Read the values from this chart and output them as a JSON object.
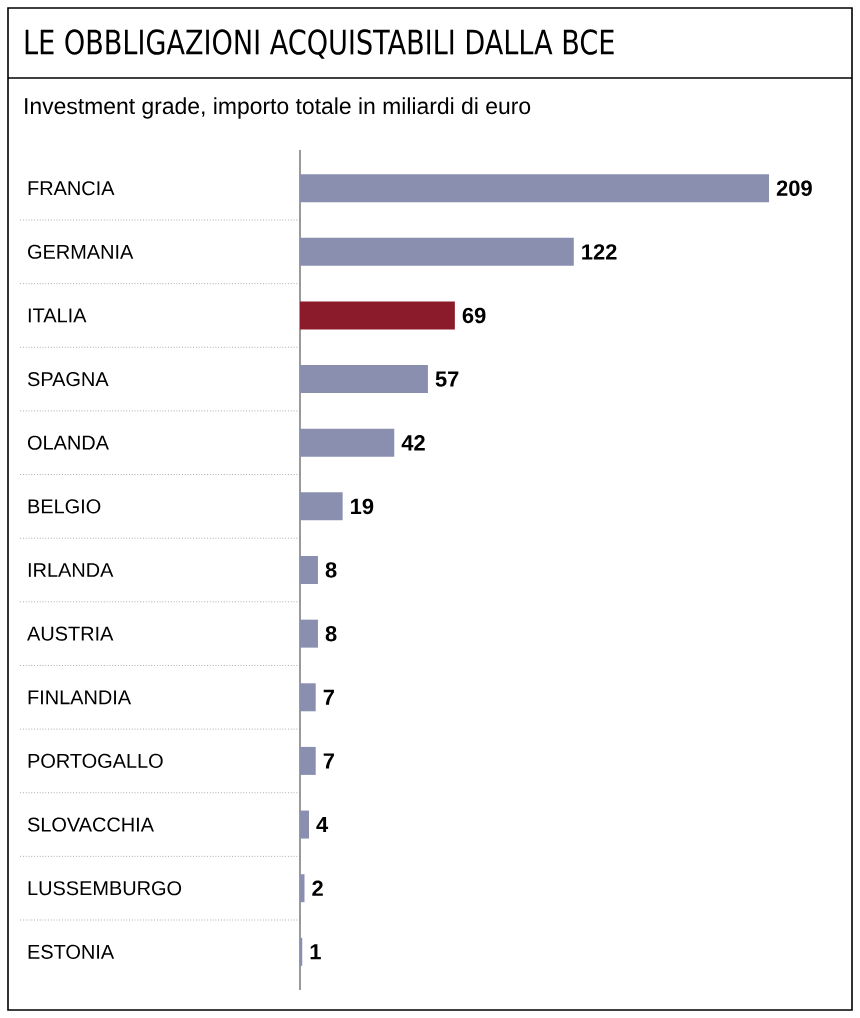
{
  "chart_data": {
    "type": "bar",
    "orientation": "horizontal",
    "title": "LE OBBLIGAZIONI ACQUISTABILI DALLA BCE",
    "subtitle": "Investment grade, importo totale in miliardi di euro",
    "categories": [
      "FRANCIA",
      "GERMANIA",
      "ITALIA",
      "SPAGNA",
      "OLANDA",
      "BELGIO",
      "IRLANDA",
      "AUSTRIA",
      "FINLANDIA",
      "PORTOGALLO",
      "SLOVACCHIA",
      "LUSSEMBURGO",
      "ESTONIA"
    ],
    "values": [
      209,
      122,
      69,
      57,
      42,
      19,
      8,
      8,
      7,
      7,
      4,
      2,
      1
    ],
    "colors": [
      "#8a8fb0",
      "#8a8fb0",
      "#8b1a2b",
      "#8a8fb0",
      "#8a8fb0",
      "#8a8fb0",
      "#8a8fb0",
      "#8a8fb0",
      "#8a8fb0",
      "#8a8fb0",
      "#8a8fb0",
      "#8a8fb0",
      "#8a8fb0"
    ],
    "data_labels": true
  }
}
